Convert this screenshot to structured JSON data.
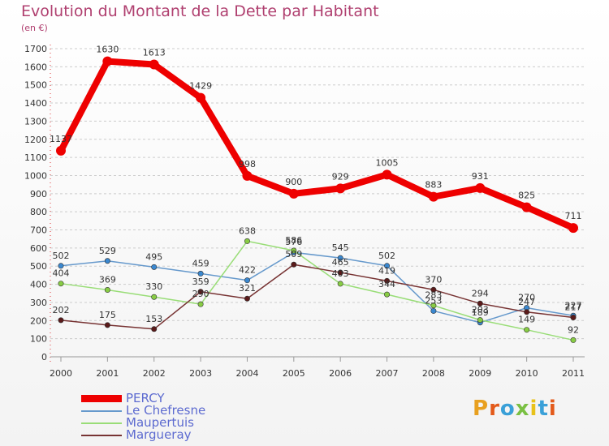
{
  "title": "Evolution du Montant de la Dette par Habitant",
  "subtitle": "(en €)",
  "colors": {
    "title": "#b04070",
    "axis": "#333333",
    "grid": "#cccccc",
    "legend_text": "#5d6bd0"
  },
  "logo": {
    "text": "Proxiti",
    "colors": [
      "#e8a020",
      "#e35a1a",
      "#3aa0d8",
      "#7ac043",
      "#e8c21a",
      "#3aa0d8",
      "#e35a1a"
    ]
  },
  "chart_data": {
    "type": "line",
    "x": [
      "2000",
      "2001",
      "2002",
      "2003",
      "2004",
      "2005",
      "2006",
      "2007",
      "2008",
      "2009",
      "2010",
      "2011"
    ],
    "ylim": [
      0,
      1700
    ],
    "yticks": [
      0,
      100,
      200,
      300,
      400,
      500,
      600,
      700,
      800,
      900,
      1000,
      1100,
      1200,
      1300,
      1400,
      1500,
      1600,
      1700
    ],
    "grid": true,
    "legend_position": "bottom-left",
    "series": [
      {
        "name": "PERCY",
        "color": "#ee0000",
        "marker": "#ee0000",
        "thick": true,
        "values": [
          1137,
          1630,
          1613,
          1429,
          998,
          900,
          929,
          1005,
          883,
          931,
          825,
          711
        ],
        "labels": [
          "1137",
          "1630",
          "1613",
          "1429",
          "998",
          "900",
          "929",
          "1005",
          "883",
          "931",
          "825",
          "711"
        ]
      },
      {
        "name": "Le Chefresne",
        "color": "#6699cc",
        "marker": "#3a88d0",
        "thick": false,
        "values": [
          502,
          529,
          495,
          459,
          422,
          576,
          545,
          502,
          253,
          189,
          270,
          227
        ],
        "labels": [
          "502",
          "529",
          "495",
          "459",
          "422",
          "576",
          "545",
          "502",
          "253",
          "189",
          "270",
          "227"
        ]
      },
      {
        "name": "Maupertuis",
        "color": "#99dd77",
        "marker": "#88cc44",
        "thick": false,
        "values": [
          404,
          369,
          330,
          290,
          638,
          586,
          403,
          344,
          283,
          203,
          149,
          92
        ],
        "labels": [
          "404",
          "369",
          "330",
          "290",
          "638",
          "586",
          "403",
          "344",
          "283",
          "203",
          "149",
          "92"
        ]
      },
      {
        "name": "Margueray",
        "color": "#773333",
        "marker": "#5a1a1a",
        "thick": false,
        "values": [
          202,
          175,
          153,
          359,
          321,
          509,
          465,
          419,
          370,
          294,
          247,
          217
        ],
        "labels": [
          "202",
          "175",
          "153",
          "359",
          "321",
          "509",
          "465",
          "419",
          "370",
          "294",
          "247",
          "217"
        ]
      }
    ]
  }
}
